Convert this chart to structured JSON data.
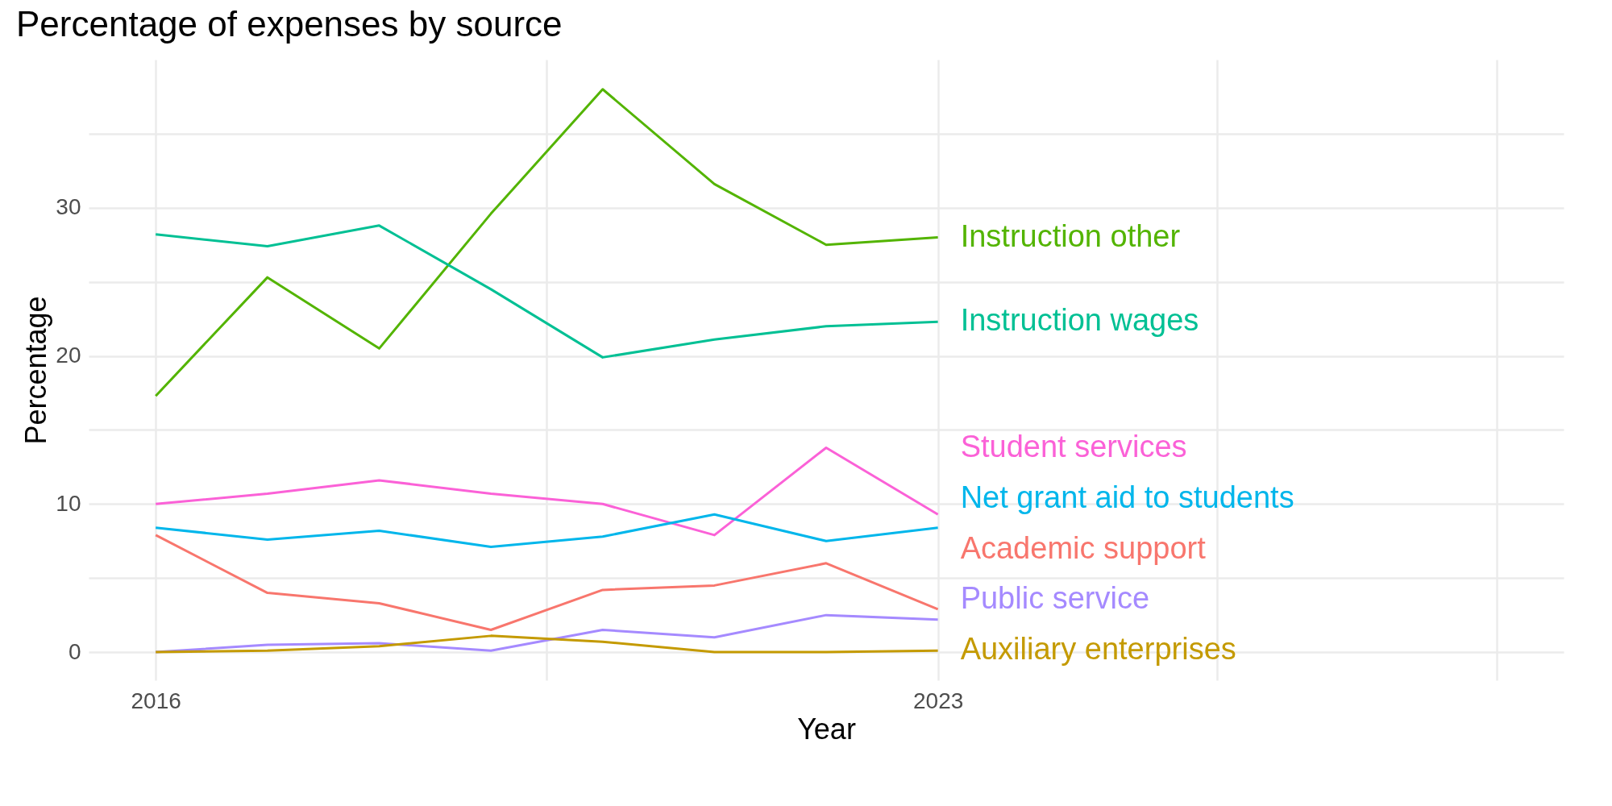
{
  "chart_data": {
    "type": "line",
    "title": "Percentage of expenses by source",
    "xlabel": "Year",
    "ylabel": "Percentage",
    "x": [
      2016,
      2017,
      2018,
      2019,
      2020,
      2021,
      2022,
      2023
    ],
    "series": [
      {
        "name": "Instruction other",
        "color": "#53b400",
        "values": [
          17.3,
          25.3,
          20.5,
          29.6,
          38.0,
          31.6,
          27.5,
          28.0
        ]
      },
      {
        "name": "Instruction wages",
        "color": "#00c094",
        "values": [
          28.2,
          27.4,
          28.8,
          24.5,
          19.9,
          21.1,
          22.0,
          22.3
        ]
      },
      {
        "name": "Student services",
        "color": "#fb61d7",
        "values": [
          10.0,
          10.7,
          11.6,
          10.7,
          10.0,
          7.9,
          13.8,
          9.3
        ]
      },
      {
        "name": "Net grant aid to students",
        "color": "#00b6eb",
        "values": [
          8.4,
          7.6,
          8.2,
          7.1,
          7.8,
          9.3,
          7.5,
          8.4
        ]
      },
      {
        "name": "Academic support",
        "color": "#f8766d",
        "values": [
          7.9,
          4.0,
          3.3,
          1.5,
          4.2,
          4.5,
          6.0,
          2.9
        ]
      },
      {
        "name": "Public service",
        "color": "#a58aff",
        "values": [
          0.0,
          0.5,
          0.6,
          0.1,
          1.5,
          1.0,
          2.5,
          2.2
        ]
      },
      {
        "name": "Auxiliary enterprises",
        "color": "#c49a00",
        "values": [
          0.0,
          0.1,
          0.4,
          1.1,
          0.7,
          0.0,
          0.0,
          0.1
        ]
      }
    ],
    "xlim": [
      2015.4,
      2028.6
    ],
    "ylim": [
      -1.9,
      40
    ],
    "xticks": [
      2016,
      {
        "value": 2019.5,
        "label": null
      },
      2023,
      {
        "value": 2025.5,
        "label": null
      },
      {
        "value": 2028,
        "label": null
      }
    ],
    "yticks": [
      0,
      {
        "value": 5,
        "label": null
      },
      10,
      {
        "value": 15,
        "label": null
      },
      20,
      {
        "value": 25,
        "label": null
      },
      30,
      {
        "value": 35,
        "label": null
      }
    ],
    "grid": true,
    "legend": false
  }
}
